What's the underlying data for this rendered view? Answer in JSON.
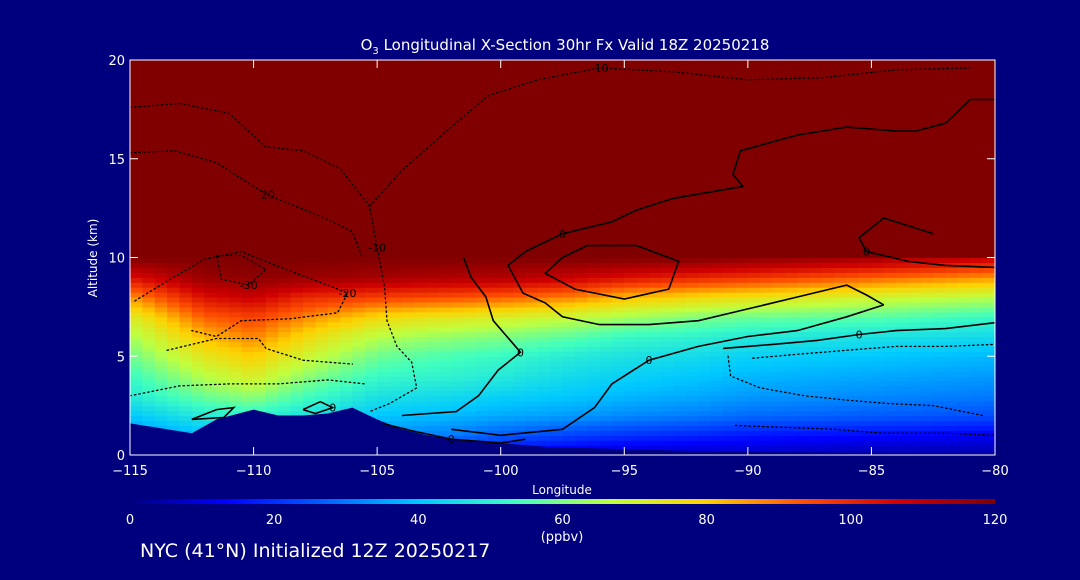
{
  "chart_data": {
    "type": "heatmap",
    "title_prefix": "O",
    "title_subscript": "3",
    "title_rest": " Longitudinal X-Section 30hr  Fx Valid 18Z 20250218",
    "xlabel": "Longitude",
    "ylabel": "Altitude (km)",
    "xlim": [
      -115,
      -80
    ],
    "ylim": [
      0,
      20
    ],
    "x_ticks": [
      -115,
      -110,
      -105,
      -100,
      -95,
      -90,
      -85,
      -80
    ],
    "x_tick_labels": [
      "−115",
      "−110",
      "−105",
      "−100",
      "−95",
      "−90",
      "−85",
      "−80"
    ],
    "y_ticks": [
      0,
      5,
      10,
      15,
      20
    ],
    "y_tick_labels": [
      "0",
      "5",
      "10",
      "15",
      "20"
    ],
    "colorbar": {
      "min": 0,
      "max": 120,
      "ticks": [
        0,
        20,
        40,
        60,
        80,
        100,
        120
      ],
      "tick_labels": [
        "0",
        "20",
        "40",
        "60",
        "80",
        "100",
        "120"
      ],
      "units": "(ppbv)",
      "colors": [
        "#00007f",
        "#0000ff",
        "#0060ff",
        "#00c8ff",
        "#40ffbf",
        "#bfff40",
        "#ffd000",
        "#ff5000",
        "#d00000",
        "#800000"
      ]
    },
    "ozone_profile": {
      "longitude": [
        -115,
        -112,
        -110,
        -108,
        -105,
        -102,
        -100,
        -97,
        -95,
        -92,
        -90,
        -85,
        -80
      ],
      "altitude_km": [
        0,
        1,
        2,
        3,
        4,
        5,
        6,
        7,
        8,
        9,
        10
      ],
      "values_ppbv": [
        [
          20,
          32,
          40,
          48,
          52,
          58,
          64,
          72,
          86,
          104,
          120
        ],
        [
          28,
          38,
          48,
          58,
          66,
          74,
          82,
          92,
          104,
          116,
          120
        ],
        [
          26,
          40,
          50,
          62,
          72,
          80,
          88,
          96,
          108,
          118,
          120
        ],
        [
          24,
          36,
          46,
          54,
          62,
          70,
          78,
          88,
          100,
          116,
          120
        ],
        [
          22,
          32,
          40,
          46,
          52,
          58,
          66,
          78,
          96,
          114,
          120
        ],
        [
          16,
          30,
          38,
          44,
          50,
          54,
          62,
          74,
          94,
          112,
          120
        ],
        [
          10,
          26,
          36,
          42,
          48,
          52,
          60,
          72,
          92,
          112,
          120
        ],
        [
          8,
          22,
          34,
          40,
          44,
          48,
          56,
          68,
          88,
          108,
          120
        ],
        [
          6,
          20,
          32,
          38,
          42,
          46,
          52,
          64,
          82,
          104,
          120
        ],
        [
          6,
          18,
          30,
          36,
          40,
          44,
          50,
          60,
          78,
          100,
          120
        ],
        [
          6,
          16,
          28,
          34,
          38,
          42,
          48,
          58,
          76,
          98,
          118
        ],
        [
          4,
          14,
          26,
          32,
          36,
          40,
          46,
          56,
          70,
          92,
          114
        ],
        [
          4,
          12,
          24,
          30,
          34,
          38,
          44,
          52,
          66,
          86,
          108
        ]
      ]
    },
    "terrain": {
      "longitude": [
        -115,
        -113,
        -112.5,
        -111.5,
        -110,
        -109,
        -108,
        -107,
        -106,
        -105,
        -104,
        -103,
        -102,
        -101,
        -100,
        -98,
        -95,
        -92,
        -90,
        -85,
        -80
      ],
      "altitude_km": [
        1.6,
        1.2,
        1.1,
        1.8,
        2.3,
        2.0,
        2.0,
        2.1,
        2.4,
        1.8,
        1.3,
        1.0,
        0.8,
        0.7,
        0.6,
        0.4,
        0.3,
        0.2,
        0.15,
        0.1,
        0.05
      ]
    },
    "contours": [
      {
        "label": "0",
        "style": "solid",
        "points": [
          [
            -80,
            18
          ],
          [
            -81,
            18
          ],
          [
            -82,
            16.8
          ],
          [
            -83.2,
            16.4
          ],
          [
            -84,
            16.4
          ],
          [
            -86,
            16.6
          ],
          [
            -88,
            16.2
          ],
          [
            -90.3,
            15.4
          ],
          [
            -90.6,
            14.2
          ],
          [
            -90.2,
            13.6
          ],
          [
            -93,
            13.0
          ],
          [
            -94.5,
            12.4
          ],
          [
            -95.5,
            11.8
          ],
          [
            -97.5,
            11.2
          ],
          [
            -99,
            10.3
          ],
          [
            -99.7,
            9.6
          ],
          [
            -99.1,
            8.2
          ],
          [
            -98.2,
            7.7
          ],
          [
            -97.5,
            7.0
          ],
          [
            -96,
            6.6
          ],
          [
            -94,
            6.6
          ],
          [
            -92,
            6.8
          ],
          [
            -90,
            7.4
          ],
          [
            -88,
            8.0
          ],
          [
            -86,
            8.6
          ],
          [
            -85.2,
            8.1
          ],
          [
            -84.5,
            7.6
          ]
        ]
      },
      {
        "label": "0",
        "style": "solid",
        "points": [
          [
            -101.5,
            10.0
          ],
          [
            -101.2,
            9.0
          ],
          [
            -100.6,
            8.0
          ],
          [
            -100.3,
            6.8
          ],
          [
            -99.2,
            5.2
          ],
          [
            -100.1,
            4.3
          ],
          [
            -100.9,
            3.0
          ],
          [
            -101.8,
            2.2
          ],
          [
            -104,
            2.0
          ]
        ]
      },
      {
        "label": "0",
        "style": "solid",
        "points": [
          [
            -84.5,
            7.6
          ],
          [
            -86,
            7.0
          ],
          [
            -88,
            6.3
          ],
          [
            -90,
            6.0
          ],
          [
            -92,
            5.5
          ],
          [
            -94,
            4.8
          ],
          [
            -95.5,
            3.6
          ],
          [
            -96.2,
            2.4
          ],
          [
            -97.5,
            1.3
          ],
          [
            -100,
            1.0
          ],
          [
            -102,
            1.3
          ]
        ]
      },
      {
        "label": "0",
        "style": "solid",
        "points": [
          [
            -80,
            6.7
          ],
          [
            -82,
            6.4
          ],
          [
            -84,
            6.3
          ],
          [
            -85.5,
            6.1
          ],
          [
            -87.2,
            5.8
          ],
          [
            -89,
            5.6
          ],
          [
            -91,
            5.4
          ]
        ]
      },
      {
        "label": "0",
        "style": "solid",
        "points": [
          [
            -82.5,
            11.2
          ],
          [
            -84.5,
            12.0
          ],
          [
            -85.5,
            11.0
          ],
          [
            -85.2,
            10.3
          ],
          [
            -83.5,
            9.8
          ],
          [
            -82,
            9.6
          ],
          [
            -80,
            9.5
          ]
        ]
      },
      {
        "label": "",
        "style": "solid",
        "points": [
          [
            -97.5,
            10.0
          ],
          [
            -96.5,
            10.6
          ],
          [
            -94.5,
            10.6
          ],
          [
            -92.8,
            9.8
          ],
          [
            -93.2,
            8.4
          ],
          [
            -95,
            7.9
          ],
          [
            -97,
            8.4
          ],
          [
            -98.2,
            9.2
          ],
          [
            -97.5,
            10.0
          ]
        ]
      },
      {
        "label": "0",
        "style": "solid",
        "points": [
          [
            -104.8,
            1.6
          ],
          [
            -103.5,
            1.2
          ],
          [
            -102,
            0.8
          ],
          [
            -100,
            0.6
          ],
          [
            -99,
            0.8
          ]
        ]
      },
      {
        "label": "",
        "style": "solid",
        "points": [
          [
            -112.5,
            1.8
          ],
          [
            -111.5,
            2.3
          ],
          [
            -110.8,
            2.4
          ],
          [
            -111.2,
            1.9
          ],
          [
            -112.5,
            1.8
          ]
        ]
      },
      {
        "label": "0",
        "style": "solid",
        "points": [
          [
            -108,
            2.3
          ],
          [
            -107.3,
            2.7
          ],
          [
            -106.8,
            2.4
          ],
          [
            -107.5,
            2.1
          ],
          [
            -108,
            2.3
          ]
        ]
      },
      {
        "label": "-10",
        "style": "dotted",
        "points": [
          [
            -115,
            17.6
          ],
          [
            -113,
            17.8
          ],
          [
            -111,
            17.3
          ],
          [
            -109.5,
            15.6
          ],
          [
            -108,
            15.4
          ],
          [
            -106.5,
            14.5
          ],
          [
            -105.3,
            12.6
          ],
          [
            -105,
            10.5
          ],
          [
            -104.7,
            8.5
          ],
          [
            -104.6,
            6.8
          ],
          [
            -104.2,
            5.5
          ],
          [
            -103.6,
            4.7
          ],
          [
            -103.4,
            3.4
          ],
          [
            -104.5,
            2.6
          ],
          [
            -105.3,
            2.2
          ]
        ]
      },
      {
        "label": "-10",
        "style": "dotted",
        "points": [
          [
            -105.3,
            12.6
          ],
          [
            -104,
            14.4
          ],
          [
            -102,
            16.6
          ],
          [
            -100.5,
            18.2
          ],
          [
            -98.5,
            19.0
          ],
          [
            -96,
            19.6
          ],
          [
            -93,
            19.4
          ],
          [
            -90,
            19.0
          ],
          [
            -87,
            19.1
          ],
          [
            -84,
            19.5
          ],
          [
            -81,
            19.6
          ]
        ]
      },
      {
        "label": "-20",
        "style": "dotted",
        "points": [
          [
            -115,
            15.3
          ],
          [
            -113.2,
            15.4
          ],
          [
            -111.5,
            14.8
          ],
          [
            -109.5,
            13.2
          ],
          [
            -107.5,
            12.2
          ],
          [
            -106,
            11.3
          ],
          [
            -105.6,
            10.0
          ]
        ]
      },
      {
        "label": "-30",
        "style": "dotted",
        "points": [
          [
            -111.5,
            10.1
          ],
          [
            -110.5,
            10.1
          ],
          [
            -109.5,
            9.4
          ],
          [
            -110.2,
            8.6
          ],
          [
            -111.3,
            8.9
          ],
          [
            -111.5,
            10.1
          ]
        ]
      },
      {
        "label": "-20",
        "style": "dotted",
        "points": [
          [
            -114.8,
            7.8
          ],
          [
            -113.5,
            8.8
          ],
          [
            -112,
            9.9
          ],
          [
            -110.5,
            10.3
          ],
          [
            -108.5,
            9.3
          ],
          [
            -106.8,
            8.5
          ],
          [
            -106.2,
            8.2
          ],
          [
            -106.6,
            7.2
          ],
          [
            -108.5,
            6.9
          ],
          [
            -110.5,
            6.8
          ],
          [
            -111.5,
            6.0
          ],
          [
            -112.5,
            6.3
          ]
        ]
      },
      {
        "label": "",
        "style": "dotted",
        "points": [
          [
            -113.5,
            5.3
          ],
          [
            -111.5,
            5.9
          ],
          [
            -109.8,
            5.9
          ],
          [
            -109.5,
            5.4
          ],
          [
            -108,
            4.8
          ],
          [
            -106,
            4.6
          ]
        ]
      },
      {
        "label": "",
        "style": "dotted",
        "points": [
          [
            -115,
            3.0
          ],
          [
            -113,
            3.5
          ],
          [
            -111,
            3.6
          ],
          [
            -109,
            3.6
          ],
          [
            -107,
            3.8
          ],
          [
            -105.5,
            3.6
          ]
        ]
      },
      {
        "label": "",
        "style": "dotted",
        "points": [
          [
            -90.8,
            5.0
          ],
          [
            -90.7,
            4.0
          ],
          [
            -89.5,
            3.4
          ],
          [
            -87.7,
            3.0
          ],
          [
            -86.2,
            2.8
          ],
          [
            -84.3,
            2.6
          ],
          [
            -82.5,
            2.5
          ],
          [
            -80.5,
            2.0
          ]
        ]
      },
      {
        "label": "",
        "style": "dotted",
        "points": [
          [
            -89.8,
            4.9
          ],
          [
            -88,
            5.1
          ],
          [
            -86,
            5.3
          ],
          [
            -84,
            5.5
          ],
          [
            -82,
            5.5
          ],
          [
            -80,
            5.6
          ]
        ]
      },
      {
        "label": "",
        "style": "dotted",
        "points": [
          [
            -90.5,
            1.5
          ],
          [
            -88.5,
            1.4
          ],
          [
            -86.5,
            1.3
          ],
          [
            -84.5,
            1.1
          ],
          [
            -82,
            1.1
          ],
          [
            -80,
            1.0
          ]
        ]
      }
    ]
  },
  "footer_text": "NYC (41°N) Initialized 12Z 20250217"
}
